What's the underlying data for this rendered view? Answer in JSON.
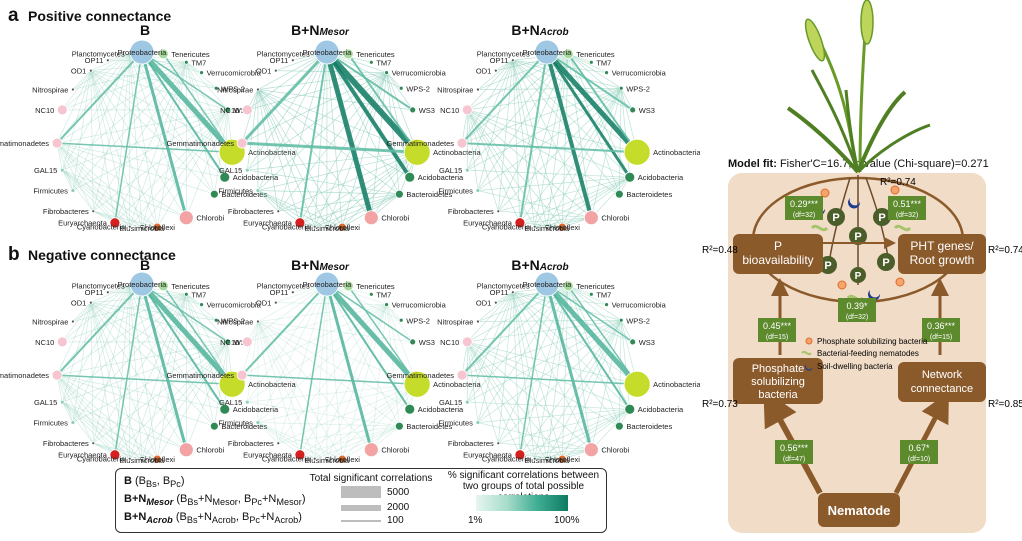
{
  "panel_a": {
    "letter": "a",
    "title": "Positive connectance"
  },
  "panel_b": {
    "letter": "b",
    "title": "Negative connectance"
  },
  "networks": {
    "b_title": "B",
    "mesor_title_main": "B+N",
    "mesor_title_sub": "Mesor",
    "acrob_title_main": "B+N",
    "acrob_title_sub": "Acrob"
  },
  "taxa": [
    "Planctomycetes",
    "Tenericutes",
    "Proteobacteria",
    "TM7",
    "OP11",
    "Verrucomicrobia",
    "OD1",
    "WPS-2",
    "Nitrospirae",
    "WS3",
    "NC10",
    "Actinobacteria",
    "Gemmatimonadetes",
    "Acidobacteria",
    "Bacteroidetes",
    "GAL15",
    "Chlorobi",
    "Firmicutes",
    "Fibrobacteres",
    "Chloroflexi",
    "Euryarchaeota",
    "Elusimicrobia",
    "Cyanobacteria"
  ],
  "legend": {
    "row1_bold": "B",
    "row1_rest": "(B",
    "row1_sub1": "Bs",
    "row1_mid": ", B",
    "row1_sub2": "Pc",
    "row1_end": ")",
    "row2_bold": "B+N",
    "row2_boldsub": "Mesor",
    "row2_text": "(B",
    "row2_text_sub1": "Bs",
    "row2_text_mid1": "+N",
    "row2_text_sub2": "Mesor",
    "row2_text_mid2": ", B",
    "row2_text_sub3": "Pc",
    "row2_text_mid3": "+N",
    "row2_text_sub4": "Mesor",
    "row2_text_end": ")",
    "row3_bold": "B+N",
    "row3_boldsub": "Acrob",
    "row3_text": "(B",
    "row3_text_sub1": "Bs",
    "row3_text_mid1": "+N",
    "row3_text_sub2": "Acrob",
    "row3_text_mid2": ", B",
    "row3_text_sub3": "Pc",
    "row3_text_mid3": "+N",
    "row3_text_sub4": "Acrob",
    "row3_text_end": ")",
    "total_title": "Total significant correlations",
    "total_5000": "5000",
    "total_2000": "2000",
    "total_100": "100",
    "pct_title": "% significant correlations between two groups of total possible correlations",
    "pct_min": "1%",
    "pct_max": "100%"
  },
  "model": {
    "fit_label": "Model fit:",
    "fit_text": "Fisher'C=16.7, p-value (Chi-square)=0.271",
    "p_bio": "P bioavailability",
    "pht": "PHT genes/ Root growth",
    "psb": "Phosphate solubilizing bacteria",
    "net": "Network connectance",
    "nematode": "Nematode",
    "r2_top": "R²=0.74",
    "r2_pbio": "R²=0.48",
    "r2_pht": "R²=0.74",
    "r2_psb": "R²=0.73",
    "r2_net": "R²=0.85",
    "coef_029": "0.29***",
    "df_029": "(df=32)",
    "coef_051": "0.51***",
    "df_051": "(df=32)",
    "coef_039": "0.39*",
    "df_039": "(df=32)",
    "coef_045": "0.45***",
    "df_045": "(df=15)",
    "coef_036": "0.36***",
    "df_036": "(df=15)",
    "coef_056": "0.56***",
    "df_056": "(df=47)",
    "coef_067": "0.67*",
    "df_067": "(df=10)",
    "leg_psb": "Phosphate solubilizing bacteria",
    "leg_nem": "Bacterial-feeding nematodes",
    "leg_soil": "Soil-dwelling bacteria",
    "p_letter": "P"
  },
  "colors": {
    "brown": "#8b5a2b",
    "panel_bg": "#f1dcc7",
    "green_box": "#5e8a2e",
    "teal_dark": "#0e7a62",
    "teal_light": "#a8dccb",
    "wheat_green": "#6a9a2a"
  }
}
